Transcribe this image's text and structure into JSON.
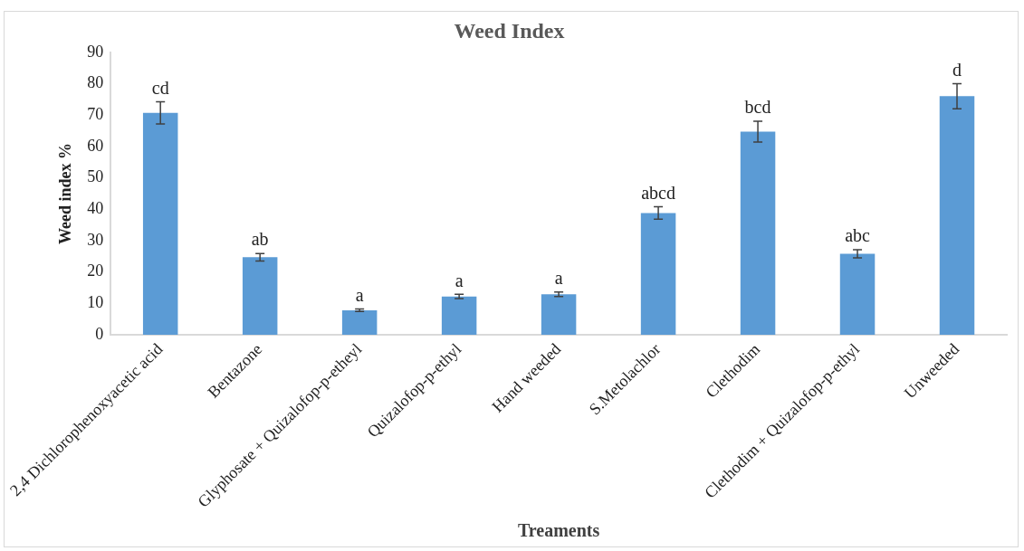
{
  "chart_data": {
    "type": "bar",
    "title": "Weed Index",
    "xlabel": "Treaments",
    "ylabel": "Weed index %",
    "categories": [
      "2,4 Dichlorophenoxyacetic acid",
      "Bentazone",
      "Glyphosate + Quizalofop-p-etheyl",
      "Quizalofop-p-ethyl",
      "Hand weeded",
      "S.Metolachlor",
      "Clethodim",
      "Clethodim + Quizalofop-p-ethyl",
      "Unweeded"
    ],
    "values": [
      70.7,
      24.7,
      7.8,
      12.2,
      12.9,
      38.8,
      64.7,
      25.8,
      76
    ],
    "errors": [
      3.5,
      1.2,
      0.4,
      0.7,
      0.7,
      2,
      3.3,
      1.3,
      4
    ],
    "color": "#5b9bd5",
    "ylim": [
      0,
      90
    ],
    "yticks": [
      0,
      10,
      20,
      30,
      40,
      50,
      60,
      70,
      80,
      90
    ],
    "grid": false,
    "legend": false,
    "annotations": [
      {
        "text": "cd",
        "x": "2,4 Dichlorophenoxyacetic acid",
        "y": 74.2
      },
      {
        "text": "ab",
        "x": "Bentazone",
        "y": 25.9
      },
      {
        "text": "a",
        "x": "Glyphosate + Quizalofop-p-etheyl",
        "y": 8.2
      },
      {
        "text": "a",
        "x": "Quizalofop-p-ethyl",
        "y": 12.9
      },
      {
        "text": "a",
        "x": "Hand weeded",
        "y": 13.6
      },
      {
        "text": "abcd",
        "x": "S.Metolachlor",
        "y": 40.8
      },
      {
        "text": "bcd",
        "x": "Clethodim",
        "y": 68
      },
      {
        "text": "abc",
        "x": "Clethodim + Quizalofop-p-ethyl",
        "y": 27.1
      },
      {
        "text": "d",
        "x": "Unweeded",
        "y": 80
      }
    ]
  }
}
